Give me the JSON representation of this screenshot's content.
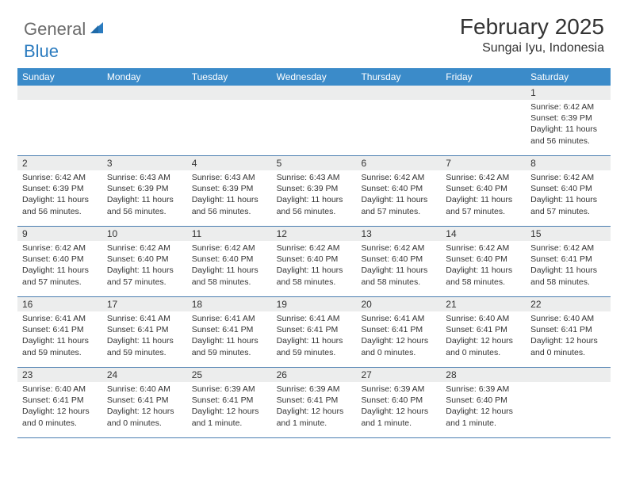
{
  "logo": {
    "text1": "General",
    "text2": "Blue"
  },
  "colors": {
    "header_bg": "#3b8bc9",
    "daynum_bg": "#eceded",
    "rule": "#4a7db0",
    "text": "#333333",
    "logo_gray": "#6b6b6b",
    "logo_blue": "#2b7bbf"
  },
  "title": "February 2025",
  "location": "Sungai Iyu, Indonesia",
  "weekdays": [
    "Sunday",
    "Monday",
    "Tuesday",
    "Wednesday",
    "Thursday",
    "Friday",
    "Saturday"
  ],
  "weeks": [
    [
      {
        "n": "",
        "sr": "",
        "ss": "",
        "dl": ""
      },
      {
        "n": "",
        "sr": "",
        "ss": "",
        "dl": ""
      },
      {
        "n": "",
        "sr": "",
        "ss": "",
        "dl": ""
      },
      {
        "n": "",
        "sr": "",
        "ss": "",
        "dl": ""
      },
      {
        "n": "",
        "sr": "",
        "ss": "",
        "dl": ""
      },
      {
        "n": "",
        "sr": "",
        "ss": "",
        "dl": ""
      },
      {
        "n": "1",
        "sr": "Sunrise: 6:42 AM",
        "ss": "Sunset: 6:39 PM",
        "dl": "Daylight: 11 hours and 56 minutes."
      }
    ],
    [
      {
        "n": "2",
        "sr": "Sunrise: 6:42 AM",
        "ss": "Sunset: 6:39 PM",
        "dl": "Daylight: 11 hours and 56 minutes."
      },
      {
        "n": "3",
        "sr": "Sunrise: 6:43 AM",
        "ss": "Sunset: 6:39 PM",
        "dl": "Daylight: 11 hours and 56 minutes."
      },
      {
        "n": "4",
        "sr": "Sunrise: 6:43 AM",
        "ss": "Sunset: 6:39 PM",
        "dl": "Daylight: 11 hours and 56 minutes."
      },
      {
        "n": "5",
        "sr": "Sunrise: 6:43 AM",
        "ss": "Sunset: 6:39 PM",
        "dl": "Daylight: 11 hours and 56 minutes."
      },
      {
        "n": "6",
        "sr": "Sunrise: 6:42 AM",
        "ss": "Sunset: 6:40 PM",
        "dl": "Daylight: 11 hours and 57 minutes."
      },
      {
        "n": "7",
        "sr": "Sunrise: 6:42 AM",
        "ss": "Sunset: 6:40 PM",
        "dl": "Daylight: 11 hours and 57 minutes."
      },
      {
        "n": "8",
        "sr": "Sunrise: 6:42 AM",
        "ss": "Sunset: 6:40 PM",
        "dl": "Daylight: 11 hours and 57 minutes."
      }
    ],
    [
      {
        "n": "9",
        "sr": "Sunrise: 6:42 AM",
        "ss": "Sunset: 6:40 PM",
        "dl": "Daylight: 11 hours and 57 minutes."
      },
      {
        "n": "10",
        "sr": "Sunrise: 6:42 AM",
        "ss": "Sunset: 6:40 PM",
        "dl": "Daylight: 11 hours and 57 minutes."
      },
      {
        "n": "11",
        "sr": "Sunrise: 6:42 AM",
        "ss": "Sunset: 6:40 PM",
        "dl": "Daylight: 11 hours and 58 minutes."
      },
      {
        "n": "12",
        "sr": "Sunrise: 6:42 AM",
        "ss": "Sunset: 6:40 PM",
        "dl": "Daylight: 11 hours and 58 minutes."
      },
      {
        "n": "13",
        "sr": "Sunrise: 6:42 AM",
        "ss": "Sunset: 6:40 PM",
        "dl": "Daylight: 11 hours and 58 minutes."
      },
      {
        "n": "14",
        "sr": "Sunrise: 6:42 AM",
        "ss": "Sunset: 6:40 PM",
        "dl": "Daylight: 11 hours and 58 minutes."
      },
      {
        "n": "15",
        "sr": "Sunrise: 6:42 AM",
        "ss": "Sunset: 6:41 PM",
        "dl": "Daylight: 11 hours and 58 minutes."
      }
    ],
    [
      {
        "n": "16",
        "sr": "Sunrise: 6:41 AM",
        "ss": "Sunset: 6:41 PM",
        "dl": "Daylight: 11 hours and 59 minutes."
      },
      {
        "n": "17",
        "sr": "Sunrise: 6:41 AM",
        "ss": "Sunset: 6:41 PM",
        "dl": "Daylight: 11 hours and 59 minutes."
      },
      {
        "n": "18",
        "sr": "Sunrise: 6:41 AM",
        "ss": "Sunset: 6:41 PM",
        "dl": "Daylight: 11 hours and 59 minutes."
      },
      {
        "n": "19",
        "sr": "Sunrise: 6:41 AM",
        "ss": "Sunset: 6:41 PM",
        "dl": "Daylight: 11 hours and 59 minutes."
      },
      {
        "n": "20",
        "sr": "Sunrise: 6:41 AM",
        "ss": "Sunset: 6:41 PM",
        "dl": "Daylight: 12 hours and 0 minutes."
      },
      {
        "n": "21",
        "sr": "Sunrise: 6:40 AM",
        "ss": "Sunset: 6:41 PM",
        "dl": "Daylight: 12 hours and 0 minutes."
      },
      {
        "n": "22",
        "sr": "Sunrise: 6:40 AM",
        "ss": "Sunset: 6:41 PM",
        "dl": "Daylight: 12 hours and 0 minutes."
      }
    ],
    [
      {
        "n": "23",
        "sr": "Sunrise: 6:40 AM",
        "ss": "Sunset: 6:41 PM",
        "dl": "Daylight: 12 hours and 0 minutes."
      },
      {
        "n": "24",
        "sr": "Sunrise: 6:40 AM",
        "ss": "Sunset: 6:41 PM",
        "dl": "Daylight: 12 hours and 0 minutes."
      },
      {
        "n": "25",
        "sr": "Sunrise: 6:39 AM",
        "ss": "Sunset: 6:41 PM",
        "dl": "Daylight: 12 hours and 1 minute."
      },
      {
        "n": "26",
        "sr": "Sunrise: 6:39 AM",
        "ss": "Sunset: 6:41 PM",
        "dl": "Daylight: 12 hours and 1 minute."
      },
      {
        "n": "27",
        "sr": "Sunrise: 6:39 AM",
        "ss": "Sunset: 6:40 PM",
        "dl": "Daylight: 12 hours and 1 minute."
      },
      {
        "n": "28",
        "sr": "Sunrise: 6:39 AM",
        "ss": "Sunset: 6:40 PM",
        "dl": "Daylight: 12 hours and 1 minute."
      },
      {
        "n": "",
        "sr": "",
        "ss": "",
        "dl": ""
      }
    ]
  ]
}
